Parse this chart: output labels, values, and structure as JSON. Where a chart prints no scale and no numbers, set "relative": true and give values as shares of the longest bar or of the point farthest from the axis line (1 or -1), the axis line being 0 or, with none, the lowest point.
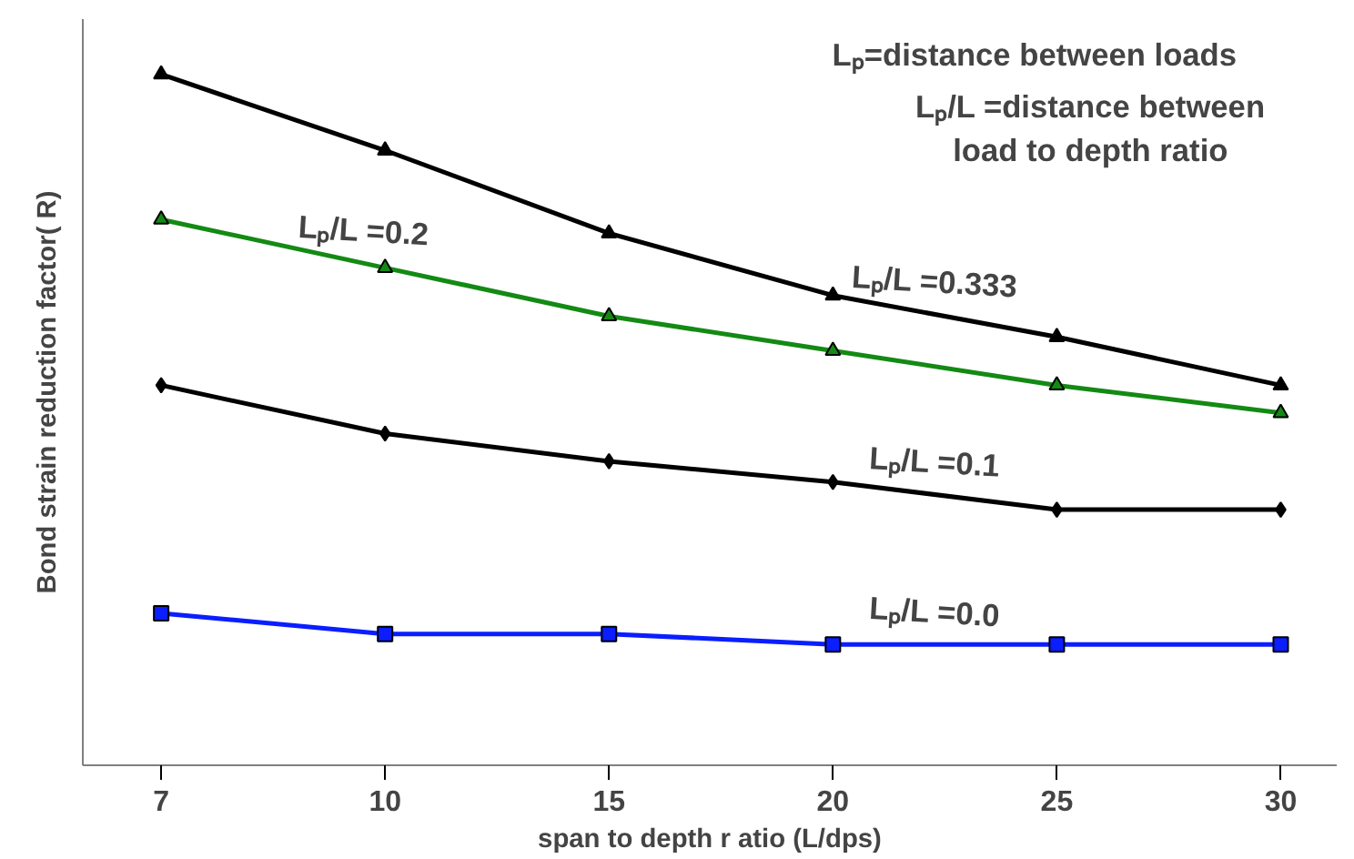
{
  "chart_data": {
    "type": "line",
    "relative": true,
    "xlabel": "span to depth r atio (L/dps)",
    "ylabel": "Bond strain reduction factor( R)",
    "categories": [
      "7",
      "10",
      "15",
      "20",
      "25",
      "30"
    ],
    "series": [
      {
        "name": "Lₚ/L =0.333",
        "color": "#000000",
        "marker": "triangle",
        "values": [
          1,
          0.89,
          0.77,
          0.68,
          0.62,
          0.55
        ]
      },
      {
        "name": "Lₚ/L =0.2",
        "color": "#138a13",
        "marker": "triangle",
        "values": [
          0.79,
          0.72,
          0.65,
          0.6,
          0.55,
          0.51
        ]
      },
      {
        "name": "Lₚ/L =0.1",
        "color": "#000000",
        "marker": "diamond",
        "values": [
          0.55,
          0.48,
          0.44,
          0.41,
          0.37,
          0.37
        ]
      },
      {
        "name": "Lₚ/L =0.0",
        "color": "#0a1eff",
        "marker": "square",
        "values": [
          0.22,
          0.19,
          0.19,
          0.175,
          0.175,
          0.175
        ]
      }
    ],
    "annotations": [
      "Lₚ=distance between loads",
      "Lₚ/L =distance between\nload to depth ratio"
    ],
    "grid": false
  }
}
